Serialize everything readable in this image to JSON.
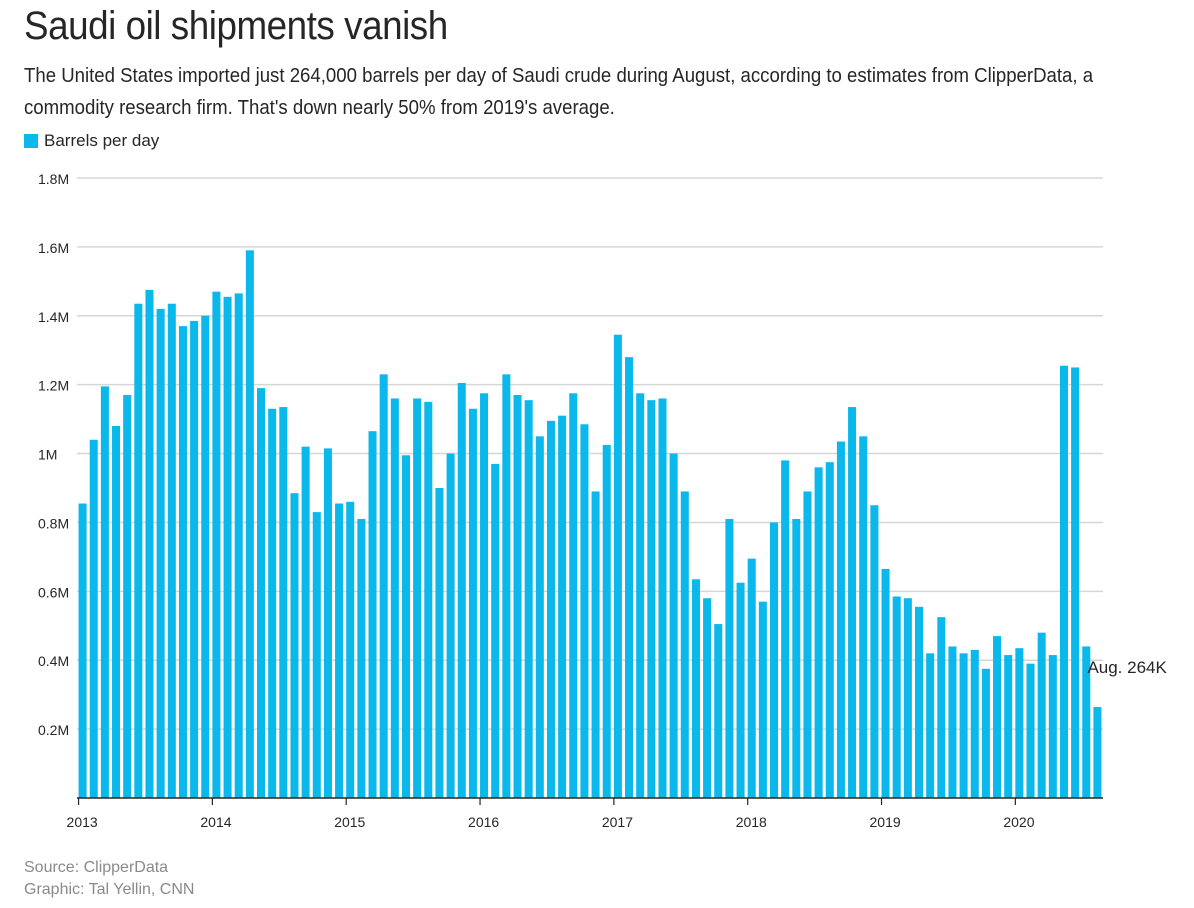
{
  "header": {
    "title": "Saudi oil shipments vanish",
    "subtitle": "The United States imported just 264,000 barrels per day of Saudi crude during August, according to estimates from ClipperData, a commodity research firm. That's down nearly 50% from 2019's average."
  },
  "footer": {
    "source": "Source: ClipperData",
    "credit": "Graphic: Tal Yellin, CNN"
  },
  "colors": {
    "bar": "#0ab8ec",
    "grid": "#d6d6d6",
    "axis": "#262626",
    "text": "#262626",
    "muted": "#8a8a8a"
  },
  "chart_data": {
    "type": "bar",
    "title": "Saudi oil shipments vanish",
    "legend": [
      "Barrels per day"
    ],
    "legend_position": "top-left",
    "xlabel": "",
    "ylabel": "",
    "ylim": [
      0,
      1800000
    ],
    "y_ticks": [
      {
        "value": 200000,
        "label": "0.2M"
      },
      {
        "value": 400000,
        "label": "0.4M"
      },
      {
        "value": 600000,
        "label": "0.6M"
      },
      {
        "value": 800000,
        "label": "0.8M"
      },
      {
        "value": 1000000,
        "label": "1M"
      },
      {
        "value": 1200000,
        "label": "1.2M"
      },
      {
        "value": 1400000,
        "label": "1.4M"
      },
      {
        "value": 1600000,
        "label": "1.6M"
      },
      {
        "value": 1800000,
        "label": "1.8M"
      }
    ],
    "x_ticks": [
      {
        "index": 0,
        "label": "2013"
      },
      {
        "index": 12,
        "label": "2014"
      },
      {
        "index": 24,
        "label": "2015"
      },
      {
        "index": 36,
        "label": "2016"
      },
      {
        "index": 48,
        "label": "2017"
      },
      {
        "index": 60,
        "label": "2018"
      },
      {
        "index": 72,
        "label": "2019"
      },
      {
        "index": 84,
        "label": "2020"
      }
    ],
    "grid": true,
    "annotation": {
      "index": 91,
      "text": "Aug. 264K"
    },
    "series": [
      {
        "name": "Barrels per day",
        "values": [
          855000,
          1040000,
          1195000,
          1080000,
          1170000,
          1435000,
          1475000,
          1420000,
          1435000,
          1370000,
          1385000,
          1400000,
          1470000,
          1455000,
          1465000,
          1590000,
          1190000,
          1130000,
          1135000,
          885000,
          1020000,
          830000,
          1015000,
          855000,
          860000,
          810000,
          1065000,
          1230000,
          1160000,
          995000,
          1160000,
          1150000,
          900000,
          1000000,
          1205000,
          1130000,
          1175000,
          970000,
          1230000,
          1170000,
          1155000,
          1050000,
          1095000,
          1110000,
          1175000,
          1085000,
          890000,
          1025000,
          1345000,
          1280000,
          1175000,
          1155000,
          1160000,
          1000000,
          890000,
          635000,
          580000,
          505000,
          810000,
          625000,
          695000,
          570000,
          800000,
          980000,
          810000,
          890000,
          960000,
          975000,
          1035000,
          1135000,
          1050000,
          850000,
          665000,
          585000,
          580000,
          555000,
          420000,
          525000,
          440000,
          420000,
          430000,
          375000,
          470000,
          415000,
          435000,
          390000,
          480000,
          415000,
          1255000,
          1250000,
          440000,
          264000
        ]
      }
    ]
  }
}
